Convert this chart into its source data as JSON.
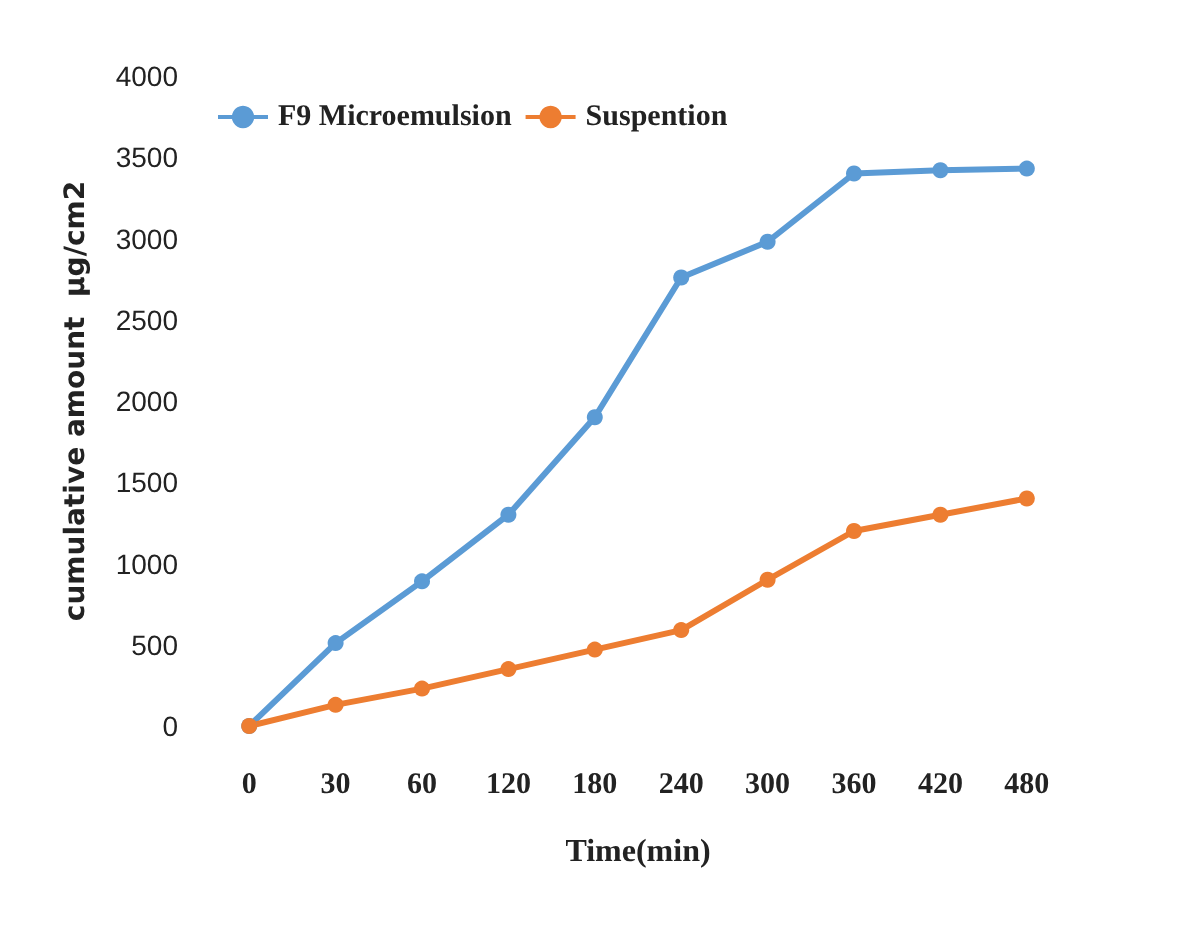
{
  "chart_data": {
    "type": "line",
    "xlabel": "Time(min)",
    "ylabel": "cumulative amount  µg/cm2",
    "categories": [
      "0",
      "30",
      "60",
      "120",
      "180",
      "240",
      "300",
      "360",
      "420",
      "480"
    ],
    "series": [
      {
        "name": "F9 Microemulsion",
        "color": "#5b9bd5",
        "values": [
          0,
          510,
          890,
          1300,
          1900,
          2760,
          2980,
          3400,
          3420,
          3430
        ]
      },
      {
        "name": "Suspention",
        "color": "#ed7d31",
        "values": [
          0,
          130,
          230,
          350,
          470,
          590,
          900,
          1200,
          1300,
          1400
        ]
      }
    ],
    "ylim": [
      0,
      4000
    ],
    "yticks": [
      0,
      500,
      1000,
      1500,
      2000,
      2500,
      3000,
      3500,
      4000
    ],
    "grid": false,
    "legend": "top left",
    "marker": "circle",
    "line_style": "solid"
  }
}
